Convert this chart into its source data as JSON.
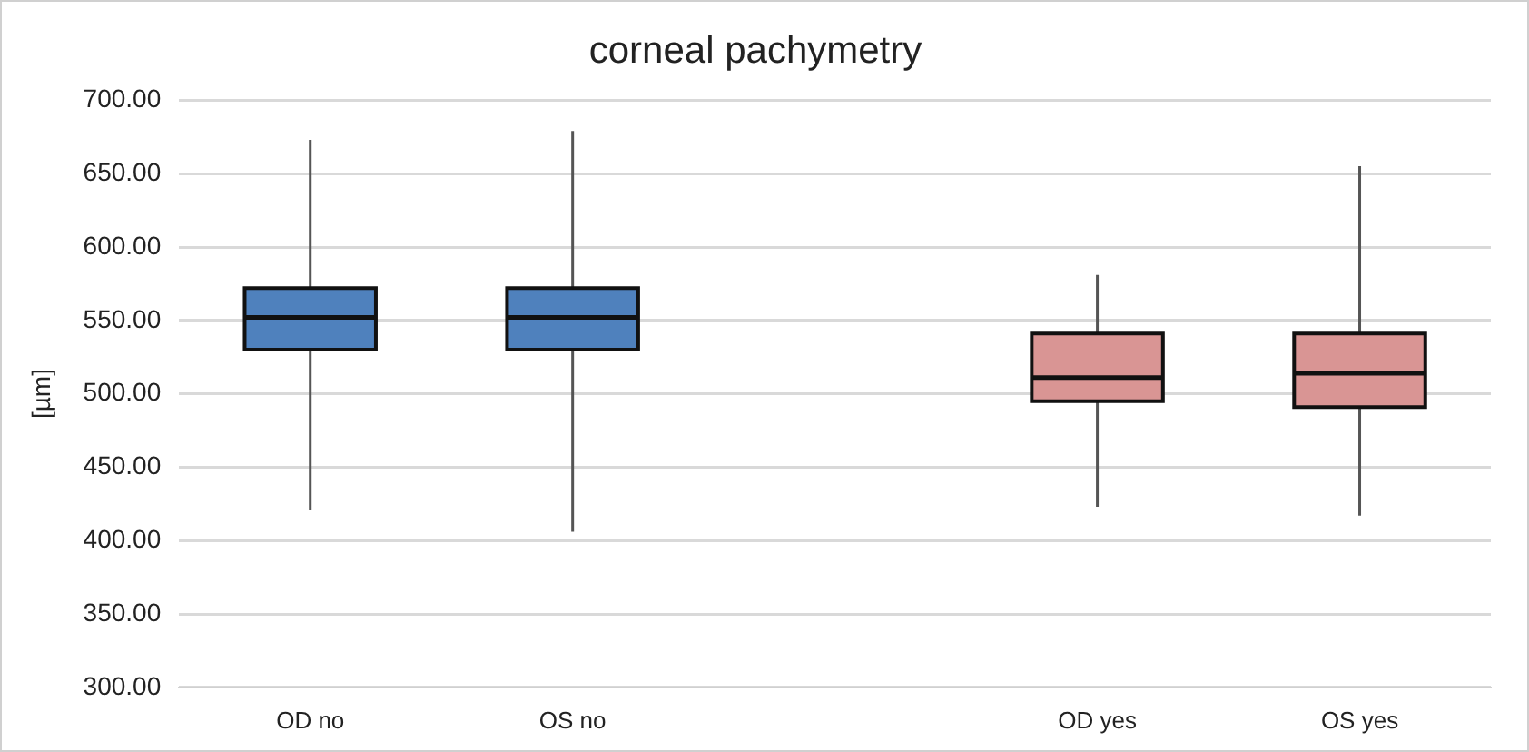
{
  "chart_data": {
    "type": "box",
    "title": "corneal pachymetry",
    "ylabel": "[µm]",
    "categories": [
      "OD no",
      "OS no",
      null,
      "OD yes",
      "OS yes"
    ],
    "boxes": [
      {
        "low": 421,
        "q1": 530,
        "median": 552,
        "q3": 572,
        "high": 673
      },
      {
        "low": 406,
        "q1": 530,
        "median": 552,
        "q3": 572,
        "high": 679
      },
      null,
      {
        "low": 423,
        "q1": 495,
        "median": 511,
        "q3": 541,
        "high": 581
      },
      {
        "low": 417,
        "q1": 491,
        "median": 514,
        "q3": 541,
        "high": 655
      }
    ],
    "colors": [
      "#4f81bd",
      "#4f81bd",
      null,
      "#d99594",
      "#d99594"
    ],
    "ylim": [
      300,
      700
    ],
    "yticks": [
      {
        "value": 300,
        "label": "300.00"
      },
      {
        "value": 350,
        "label": "350.00"
      },
      {
        "value": 400,
        "label": "400.00"
      },
      {
        "value": 450,
        "label": "450.00"
      },
      {
        "value": 500,
        "label": "500.00"
      },
      {
        "value": 550,
        "label": "550.00"
      },
      {
        "value": 600,
        "label": "600.00"
      },
      {
        "value": 650,
        "label": "650.00"
      },
      {
        "value": 700,
        "label": "700.00"
      }
    ],
    "grid": "y",
    "legend": false
  }
}
